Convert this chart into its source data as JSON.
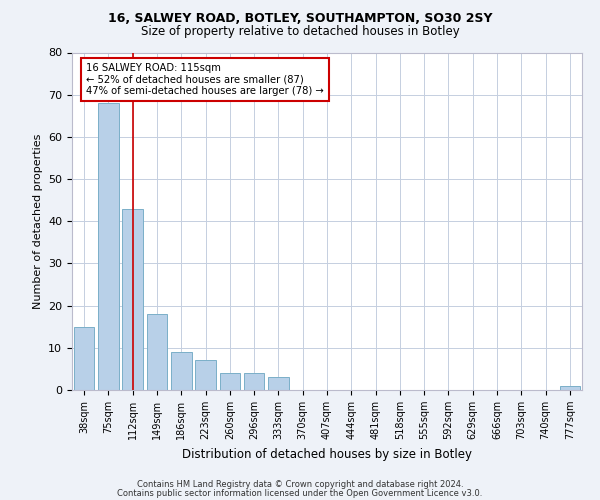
{
  "title1": "16, SALWEY ROAD, BOTLEY, SOUTHAMPTON, SO30 2SY",
  "title2": "Size of property relative to detached houses in Botley",
  "xlabel": "Distribution of detached houses by size in Botley",
  "ylabel": "Number of detached properties",
  "categories": [
    "38sqm",
    "75sqm",
    "112sqm",
    "149sqm",
    "186sqm",
    "223sqm",
    "260sqm",
    "296sqm",
    "333sqm",
    "370sqm",
    "407sqm",
    "444sqm",
    "481sqm",
    "518sqm",
    "555sqm",
    "592sqm",
    "629sqm",
    "666sqm",
    "703sqm",
    "740sqm",
    "777sqm"
  ],
  "values": [
    15,
    68,
    43,
    18,
    9,
    7,
    4,
    4,
    3,
    0,
    0,
    0,
    0,
    0,
    0,
    0,
    0,
    0,
    0,
    0,
    1
  ],
  "bar_color": "#b8d0e8",
  "bar_edge_color": "#7aafc8",
  "vline_x_index": 2,
  "vline_color": "#cc0000",
  "annotation_line1": "16 SALWEY ROAD: 115sqm",
  "annotation_line2": "← 52% of detached houses are smaller (87)",
  "annotation_line3": "47% of semi-detached houses are larger (78) →",
  "annotation_box_color": "#ffffff",
  "annotation_box_edge_color": "#cc0000",
  "ylim": [
    0,
    80
  ],
  "yticks": [
    0,
    10,
    20,
    30,
    40,
    50,
    60,
    70,
    80
  ],
  "footer1": "Contains HM Land Registry data © Crown copyright and database right 2024.",
  "footer2": "Contains public sector information licensed under the Open Government Licence v3.0.",
  "background_color": "#eef2f8",
  "plot_background_color": "#ffffff",
  "grid_color": "#c5cfe0",
  "title1_fontsize": 9,
  "title2_fontsize": 8.5,
  "ylabel_fontsize": 8,
  "xlabel_fontsize": 8.5
}
